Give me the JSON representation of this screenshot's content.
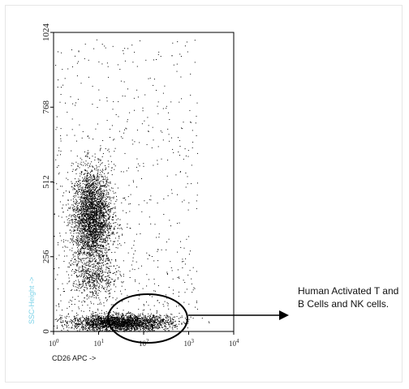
{
  "chart_data": {
    "type": "scatter",
    "xlabel": "CD26 APC ->",
    "ylabel": "SSC-Height ->",
    "x_scale": "log",
    "xlim": [
      1,
      10000
    ],
    "ylim": [
      0,
      1024
    ],
    "x_ticks": [
      "10",
      "10",
      "10",
      "10",
      "10"
    ],
    "x_tick_exponents": [
      "0",
      "1",
      "2",
      "3",
      "4"
    ],
    "y_ticks": [
      "0",
      "256",
      "512",
      "768",
      "1024"
    ],
    "annotation": "Human Activated T and B Cells and NK cells.",
    "ylabel_color": "#7fd3e8",
    "point_color": "#000000",
    "populations": [
      {
        "x_center": 7,
        "y_center": 390,
        "count": 3200
      },
      {
        "x_center": 8,
        "y_center": 180,
        "count": 450
      },
      {
        "x_center": 30,
        "y_center": 30,
        "count": 2600
      },
      {
        "x_center": 30,
        "y_center": 500,
        "count": 700
      }
    ]
  }
}
